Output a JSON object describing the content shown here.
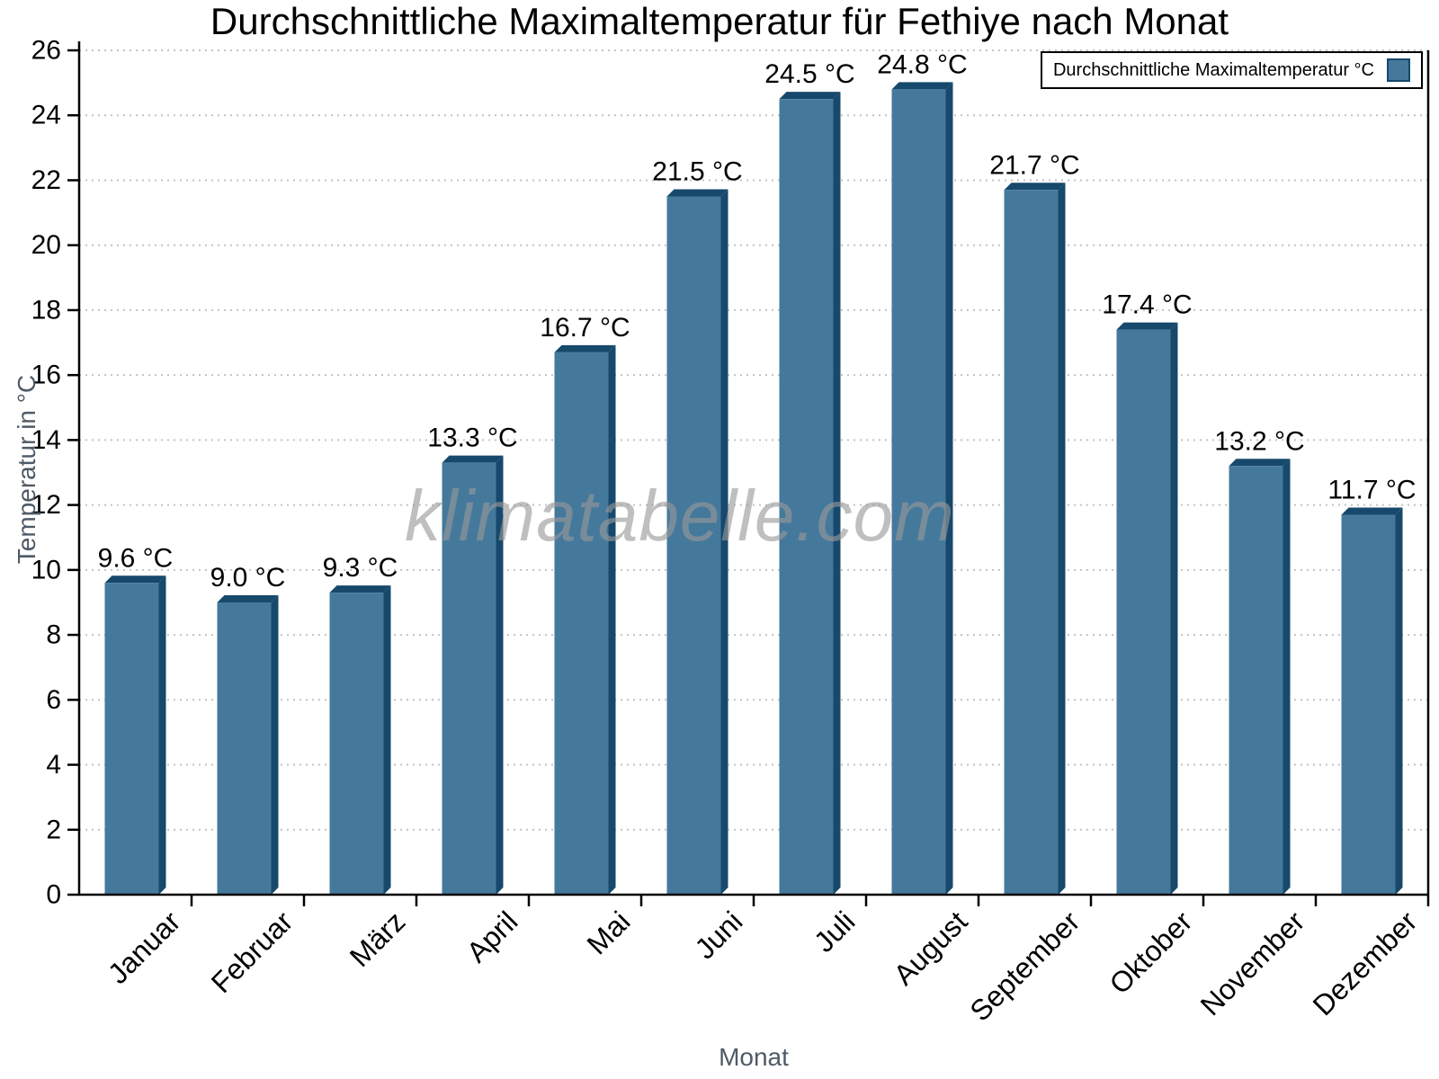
{
  "chart_data": {
    "type": "bar",
    "title": "Durchschnittliche Maximaltemperatur für Fethiye nach Monat",
    "xlabel": "Monat",
    "ylabel": "Temperatur in °C",
    "categories": [
      "Januar",
      "Februar",
      "März",
      "April",
      "Mai",
      "Juni",
      "Juli",
      "August",
      "September",
      "Oktober",
      "November",
      "Dezember"
    ],
    "series": [
      {
        "name": "Durchschnittliche Maximaltemperatur °C",
        "values": [
          9.6,
          9.0,
          9.3,
          13.3,
          16.7,
          21.5,
          24.5,
          24.8,
          21.7,
          17.4,
          13.2,
          11.7
        ]
      }
    ],
    "value_label_suffix": " °C",
    "ylim": [
      0,
      26
    ],
    "ytick_step": 2,
    "grid": true,
    "legend_position": "top-right",
    "colors": {
      "bar_face": "#45799C",
      "bar_edge": "#16496B",
      "grid": "#C3C3C3",
      "axis": "#000000",
      "axis_title": "#4E5A66",
      "tick_label": "#000000",
      "value_label": "#000000"
    }
  },
  "legend": {
    "label": "Durchschnittliche Maximaltemperatur °C"
  },
  "watermark": {
    "text": "klimatabelle.com"
  }
}
